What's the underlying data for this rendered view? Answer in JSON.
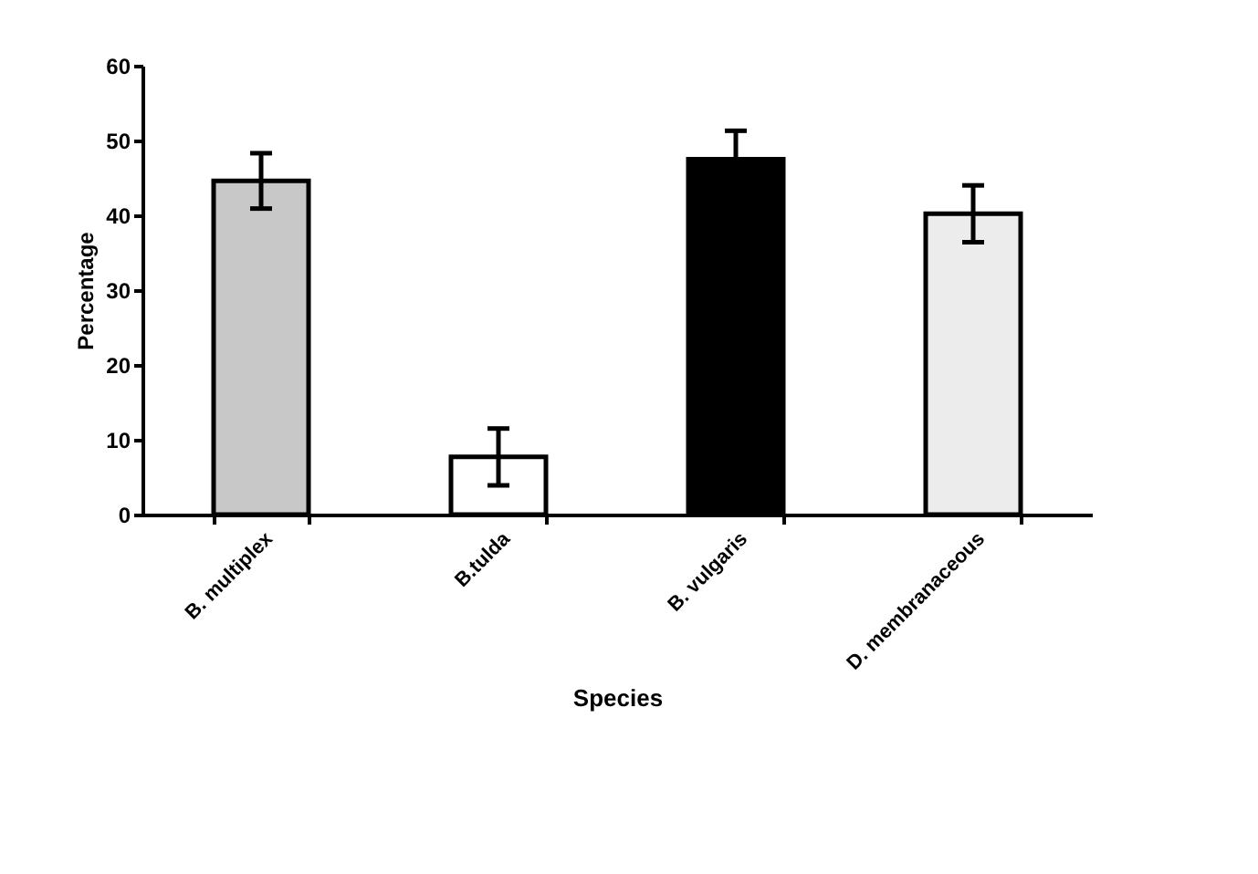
{
  "chart_data": {
    "type": "bar",
    "xlabel": "Species",
    "ylabel": "Percentage",
    "categories": [
      "B. multiplex",
      "B.tulda",
      "B. vulgaris",
      "D. membranaceous"
    ],
    "values": [
      44.6,
      7.7,
      47.5,
      40.2
    ],
    "errors": [
      3.7,
      3.8,
      3.8,
      3.8
    ],
    "colors": [
      "#c8c8c8",
      "#ffffff",
      "#000000",
      "#ececec"
    ],
    "ylim": [
      0,
      60
    ],
    "yticks": [
      0,
      10,
      20,
      30,
      40,
      50,
      60
    ],
    "grid": false
  }
}
